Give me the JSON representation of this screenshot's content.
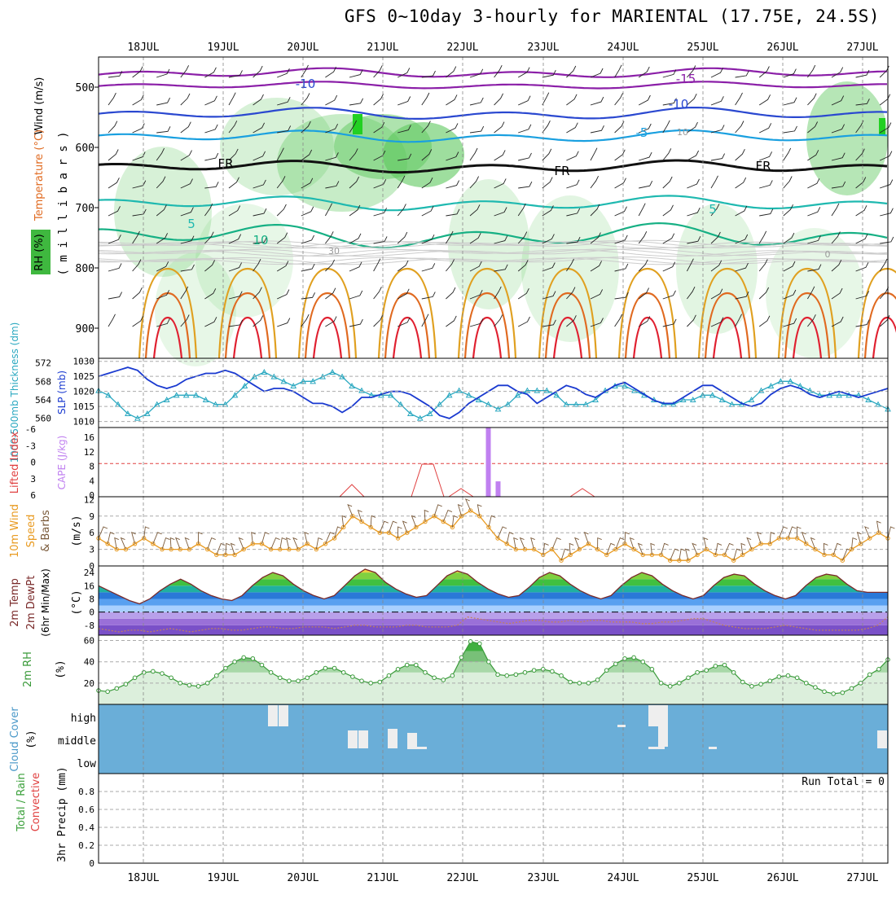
{
  "title": "GFS 0~10day 3-hourly for MARIENTAL (17.75E, 24.5S)",
  "dates": [
    "18JUL",
    "19JUL",
    "20JUL",
    "21JUL",
    "22JUL",
    "23JUL",
    "24JUL",
    "25JUL",
    "26JUL",
    "27JUL"
  ],
  "colors": {
    "temp_cold": "#8b1fa8",
    "temp_m10": "#2a48d0",
    "temp_m5": "#1aa0e0",
    "freezing": "#111111",
    "temp_5": "#1fb9b0",
    "temp_10": "#16b084",
    "temp_warm1": "#e0a020",
    "temp_warm2": "#e06a20",
    "temp_hot": "#e02030",
    "rh_fill": "#5ec85e",
    "thickness": "#2aa8c0",
    "slp": "#1a3ad0",
    "cape": "#c080f0",
    "lifted": "#e04040",
    "wind10m": "#e89a20",
    "barb": "#7a5a3a",
    "rh2m": "#3a9a3a",
    "cloud": "#6aaed8",
    "cloud_gap": "#eeeeee",
    "temp_fill_cold": "#8a5ad8",
    "temp_fill_warm": "#58c040"
  },
  "panels": {
    "upper_air": {
      "ylabel_parts": [
        "RH (%)",
        "Temperature (°C)",
        "Wind (m/s)"
      ],
      "ylabel_unit": "( m i l l i b a r s )",
      "ticks": [
        "500",
        "600",
        "700",
        "800",
        "900"
      ],
      "contour_labels": [
        "-10",
        "-15",
        "-10",
        "-5",
        "10",
        "FR",
        "FR",
        "FR",
        "5",
        "10",
        "5",
        "30",
        "0"
      ]
    },
    "thickness_slp": {
      "ylabel_left": "1000-500mb Thickness (dm)",
      "ylabel_right": "SLP (mb)",
      "left_ticks": [
        "572",
        "568",
        "564",
        "560"
      ],
      "right_ticks": [
        "1030",
        "1025",
        "1020",
        "1015",
        "1010"
      ]
    },
    "cape": {
      "ylabel_left": "Lifted Index",
      "ylabel_right": "CAPE (J/kg)",
      "left_ticks": [
        "-6",
        "-3",
        "0",
        "3",
        "6"
      ],
      "right_ticks": [
        "16",
        "12",
        "8",
        "4",
        "0"
      ]
    },
    "wind10m": {
      "ylabel": [
        "10m Wind",
        "Speed",
        "& Barbs"
      ],
      "unit": "(m/s)",
      "ticks": [
        "12",
        "9",
        "6",
        "3",
        "0"
      ]
    },
    "temp2m": {
      "ylabel": [
        "2m Temp",
        "2m DewPt",
        "(6hr Min/Max)"
      ],
      "unit": "(°C)",
      "ticks": [
        "24",
        "16",
        "8",
        "0",
        "-8"
      ]
    },
    "rh2m": {
      "ylabel": "2m RH",
      "unit": "(%)",
      "ticks": [
        "60",
        "40",
        "20"
      ]
    },
    "cloud": {
      "ylabel": "Cloud Cover",
      "unit": "(%)",
      "levels": [
        "high",
        "middle",
        "low"
      ]
    },
    "precip": {
      "ylabel_parts": [
        "Total / Rain",
        "Convective"
      ],
      "ylabel2": "3hr Precip (mm)",
      "ticks": [
        "0.8",
        "0.6",
        "0.4",
        "0.2",
        "0"
      ],
      "run_total": "Run Total = 0"
    }
  },
  "chart_data": {
    "type": "line",
    "x_unit": "3-hourly steps from 17JUL 15Z",
    "slp": [
      1025,
      1026,
      1027,
      1028,
      1027,
      1024,
      1022,
      1021,
      1022,
      1024,
      1025,
      1026,
      1026,
      1027,
      1026,
      1024,
      1022,
      1020,
      1021,
      1021,
      1020,
      1018,
      1016,
      1016,
      1015,
      1013,
      1015,
      1018,
      1018,
      1019,
      1020,
      1020,
      1019,
      1017,
      1015,
      1012,
      1011,
      1013,
      1016,
      1018,
      1020,
      1022,
      1022,
      1020,
      1019,
      1016,
      1018,
      1020,
      1022,
      1021,
      1019,
      1018,
      1020,
      1022,
      1023,
      1021,
      1019,
      1017,
      1016,
      1016,
      1018,
      1020,
      1022,
      1022,
      1020,
      1018,
      1016,
      1015,
      1016,
      1019,
      1021,
      1022,
      1021,
      1019,
      1018,
      1019,
      1020,
      1019,
      1018,
      1019,
      1020,
      1021
    ],
    "thickness": [
      566,
      565,
      563,
      561,
      560,
      561,
      563,
      564,
      565,
      565,
      565,
      564,
      563,
      563,
      565,
      567,
      569,
      570,
      569,
      568,
      567,
      568,
      568,
      569,
      570,
      569,
      567,
      566,
      565,
      565,
      565,
      563,
      561,
      560,
      561,
      563,
      565,
      566,
      565,
      564,
      563,
      562,
      563,
      565,
      566,
      566,
      566,
      565,
      563,
      563,
      563,
      564,
      566,
      567,
      567,
      566,
      565,
      564,
      563,
      563,
      564,
      564,
      565,
      565,
      564,
      563,
      563,
      564,
      566,
      567,
      568,
      568,
      567,
      566,
      565,
      565,
      565,
      565,
      565,
      564,
      563,
      562
    ],
    "cape": [
      0,
      0,
      0,
      0,
      0,
      0,
      0,
      0,
      0,
      0,
      0,
      0,
      0,
      0,
      0,
      0,
      0,
      0,
      0,
      0,
      0,
      0,
      0,
      0,
      0,
      0,
      0,
      0,
      0,
      0,
      0,
      0,
      0,
      0,
      0,
      0,
      0,
      0,
      0,
      0,
      18,
      4,
      0,
      0,
      0,
      0,
      0,
      0,
      0,
      0,
      0,
      0,
      0,
      0,
      0,
      0,
      0,
      0,
      0,
      0,
      0,
      0,
      0,
      0,
      0,
      0,
      0,
      0,
      0,
      0,
      0,
      0,
      0,
      0,
      0,
      0,
      0,
      0,
      0,
      0,
      0,
      0
    ],
    "wind10m": [
      5,
      4,
      3,
      3,
      4,
      5,
      4,
      3,
      3,
      3,
      3,
      4,
      3,
      2,
      2,
      2,
      3,
      4,
      4,
      3,
      3,
      3,
      3,
      4,
      3,
      4,
      5,
      7,
      9,
      8,
      7,
      6,
      6,
      5,
      6,
      7,
      8,
      9,
      8,
      7,
      9,
      10,
      9,
      7,
      5,
      4,
      3,
      3,
      3,
      2,
      3,
      1,
      2,
      3,
      4,
      3,
      2,
      3,
      4,
      3,
      2,
      2,
      2,
      1,
      1,
      1,
      2,
      3,
      2,
      2,
      1,
      2,
      3,
      4,
      4,
      5,
      5,
      5,
      4,
      3,
      2,
      2,
      1,
      3,
      4,
      5,
      6,
      5
    ],
    "temp2m": [
      16,
      13,
      10,
      7,
      5,
      8,
      13,
      17,
      20,
      17,
      13,
      10,
      8,
      7,
      10,
      16,
      21,
      24,
      22,
      17,
      13,
      10,
      8,
      10,
      16,
      22,
      26,
      24,
      18,
      14,
      11,
      9,
      10,
      16,
      22,
      25,
      23,
      18,
      14,
      11,
      9,
      10,
      15,
      21,
      24,
      22,
      17,
      13,
      10,
      8,
      10,
      16,
      21,
      24,
      22,
      17,
      13,
      10,
      8,
      10,
      16,
      21,
      23,
      22,
      17,
      13,
      10,
      8,
      10,
      16,
      21,
      23,
      22,
      17,
      13,
      12,
      12,
      12
    ],
    "dewpt2m": [
      -10,
      -11,
      -12,
      -11,
      -11,
      -12,
      -11,
      -10,
      -11,
      -12,
      -11,
      -10,
      -10,
      -11,
      -11,
      -10,
      -9,
      -9,
      -10,
      -10,
      -9,
      -9,
      -9,
      -10,
      -9,
      -8,
      -8,
      -9,
      -9,
      -9,
      -8,
      -8,
      -9,
      -9,
      -9,
      -8,
      -3,
      -4,
      -5,
      -6,
      -7,
      -6,
      -5,
      -5,
      -6,
      -6,
      -5,
      -6,
      -5,
      -5,
      -6,
      -6,
      -6,
      -7,
      -7,
      -6,
      -6,
      -5,
      -4,
      -4,
      -6,
      -8,
      -9,
      -10,
      -10,
      -10,
      -9,
      -8,
      -9,
      -10,
      -11,
      -11,
      -11,
      -11,
      -11,
      -10,
      -8,
      -3
    ],
    "rh2m": [
      13,
      12,
      15,
      19,
      25,
      30,
      31,
      29,
      25,
      20,
      18,
      17,
      20,
      27,
      34,
      40,
      44,
      43,
      37,
      30,
      25,
      22,
      22,
      25,
      30,
      34,
      34,
      30,
      26,
      22,
      20,
      21,
      27,
      33,
      37,
      37,
      30,
      25,
      23,
      27,
      44,
      59,
      57,
      40,
      28,
      27,
      28,
      30,
      32,
      33,
      31,
      27,
      21,
      20,
      20,
      23,
      32,
      38,
      43,
      44,
      40,
      33,
      20,
      17,
      20,
      25,
      30,
      32,
      36,
      37,
      30,
      21,
      17,
      19,
      22,
      26,
      27,
      25,
      20,
      16,
      12,
      10,
      11,
      15,
      20,
      28,
      33,
      42
    ],
    "cloud_high": [
      0,
      0,
      0,
      0,
      0,
      0,
      0,
      0,
      0,
      0,
      0,
      0,
      0,
      0,
      0,
      0,
      0,
      0,
      0,
      0,
      1,
      0,
      0,
      0,
      0,
      0,
      0,
      0,
      0,
      0,
      0,
      0,
      0,
      0,
      0,
      0,
      0,
      0,
      0,
      0,
      0,
      0,
      0,
      0,
      0,
      0,
      0,
      0,
      0,
      0,
      0,
      0,
      0,
      0,
      0,
      0,
      0,
      0,
      0,
      0,
      0,
      1,
      0,
      1,
      1,
      0,
      0,
      0,
      0,
      0,
      0,
      0,
      0,
      0,
      0,
      0,
      0,
      0,
      0,
      0,
      0,
      0
    ],
    "precip": [
      0,
      0,
      0,
      0,
      0,
      0,
      0,
      0,
      0,
      0,
      0,
      0,
      0,
      0,
      0,
      0,
      0,
      0,
      0,
      0,
      0,
      0,
      0,
      0,
      0,
      0,
      0,
      0,
      0,
      0,
      0,
      0,
      0,
      0,
      0,
      0,
      0,
      0,
      0,
      0,
      0,
      0,
      0,
      0,
      0,
      0,
      0,
      0,
      0,
      0,
      0,
      0,
      0,
      0,
      0,
      0,
      0,
      0,
      0,
      0,
      0,
      0,
      0,
      0,
      0,
      0,
      0,
      0,
      0,
      0,
      0,
      0,
      0,
      0,
      0,
      0,
      0,
      0,
      0,
      0,
      0,
      0
    ]
  }
}
